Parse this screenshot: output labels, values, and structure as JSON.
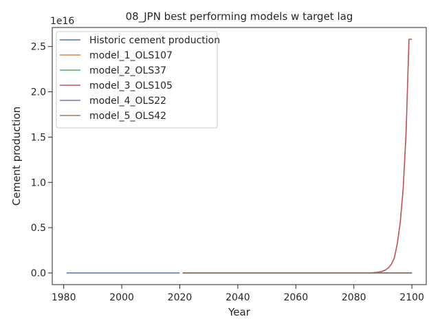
{
  "chart_data": {
    "type": "line",
    "title": "08_JPN best performing models w target lag",
    "xlabel": "Year",
    "ylabel": "Cement production",
    "y_offset_label": "1e16",
    "xlim": [
      1976.05,
      2104.95
    ],
    "ylim": [
      -1290000000000000.0,
      2.71e+16
    ],
    "x_ticks": [
      1980,
      2000,
      2020,
      2040,
      2060,
      2080,
      2100
    ],
    "x_tick_labels": [
      "1980",
      "2000",
      "2020",
      "2040",
      "2060",
      "2080",
      "2100"
    ],
    "y_ticks": [
      0,
      5000000000000000.0,
      1e+16,
      1.5e+16,
      2e+16,
      2.5e+16
    ],
    "y_tick_labels": [
      "0.0",
      "0.5",
      "1.0",
      "1.5",
      "2.0",
      "2.5"
    ],
    "grid": false,
    "legend_position": "top-left",
    "series": [
      {
        "name": "Historic cement production",
        "color": "#4c72b0",
        "x": [
          1981,
          2020
        ],
        "y": [
          0,
          0
        ]
      },
      {
        "name": "model_1_OLS107",
        "color": "#dd8452",
        "x": [
          2021,
          2100
        ],
        "y": [
          0,
          0
        ]
      },
      {
        "name": "model_2_OLS37",
        "color": "#55a868",
        "x": [
          2021,
          2100
        ],
        "y": [
          0,
          0
        ]
      },
      {
        "name": "model_3_OLS105",
        "color": "#c44e52",
        "x": [
          2021,
          2085,
          2086,
          2087,
          2088,
          2089,
          2090,
          2091,
          2092,
          2093,
          2094,
          2095,
          2096,
          2097,
          2098,
          2099,
          2100
        ],
        "y": [
          0,
          10000000000000.0,
          20000000000000.0,
          40000000000000.0,
          70000000000000.0,
          120000000000000.0,
          200000000000000.0,
          350000000000000.0,
          600000000000000.0,
          1000000000000000.0,
          1700000000000000.0,
          3300000000000000.0,
          5600000000000000.0,
          9300000000000000.0,
          1.55e+16,
          2.58e+16,
          2.58e+16
        ]
      },
      {
        "name": "model_4_OLS22",
        "color": "#8172b3",
        "x": [
          2021,
          2100
        ],
        "y": [
          0,
          0
        ]
      },
      {
        "name": "model_5_OLS42",
        "color": "#937860",
        "x": [
          2021,
          2100
        ],
        "y": [
          0,
          0
        ]
      }
    ]
  }
}
